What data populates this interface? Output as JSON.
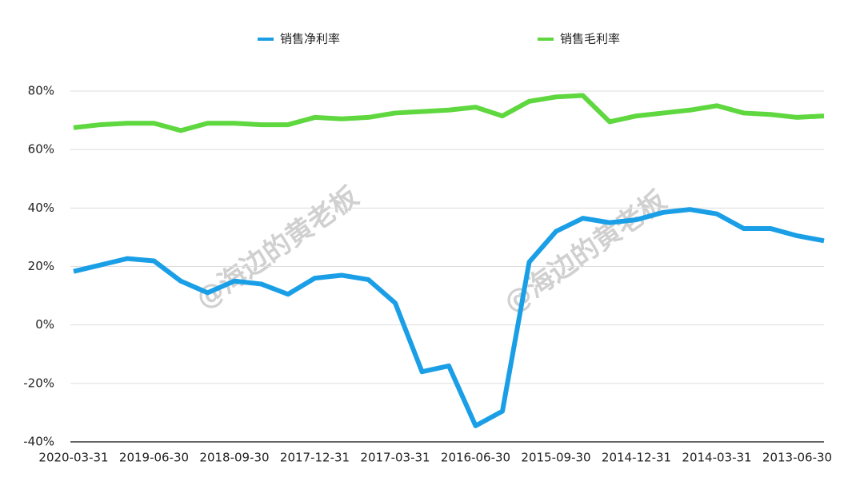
{
  "chart_data": {
    "type": "line",
    "categories": [
      "2020-03-31",
      null,
      null,
      "2019-06-30",
      null,
      null,
      "2018-09-30",
      null,
      null,
      "2017-12-31",
      null,
      null,
      "2017-03-31",
      null,
      null,
      "2016-06-30",
      null,
      null,
      "2015-09-30",
      null,
      null,
      "2014-12-31",
      null,
      null,
      "2014-03-31",
      null,
      null,
      "2013-06-30",
      null
    ],
    "series": [
      {
        "name": "销售净利率",
        "color": "#1a9fe6",
        "values": [
          18.3,
          20.5,
          22.7,
          21.9,
          15,
          11,
          15,
          14,
          10.5,
          16,
          17,
          15.5,
          7.5,
          -16,
          -14,
          -34.5,
          -29.5,
          21.5,
          32,
          36.5,
          35,
          36,
          38.5,
          39.5,
          38,
          33,
          33,
          30.5,
          28.8
        ]
      },
      {
        "name": "销售毛利率",
        "color": "#5fd73f",
        "values": [
          67.5,
          68.5,
          69,
          69,
          66.5,
          69,
          69,
          68.5,
          68.5,
          71,
          70.5,
          71,
          72.5,
          73,
          73.5,
          74.5,
          71.5,
          76.5,
          78,
          78.5,
          69.5,
          71.5,
          72.5,
          73.5,
          75,
          72.5,
          72,
          71,
          71.5
        ]
      }
    ],
    "ylim": [
      -40,
      80
    ],
    "yticks": [
      {
        "value": -40,
        "label": "-40%"
      },
      {
        "value": -20,
        "label": "-20%"
      },
      {
        "value": 0,
        "label": "0%"
      },
      {
        "value": 20,
        "label": "20%"
      },
      {
        "value": 40,
        "label": "40%"
      },
      {
        "value": 60,
        "label": "60%"
      },
      {
        "value": 80,
        "label": "80%"
      }
    ],
    "grid": true,
    "legend": "top",
    "annotations": [
      "@海边的黄老板",
      "@海边的黄老板"
    ]
  }
}
